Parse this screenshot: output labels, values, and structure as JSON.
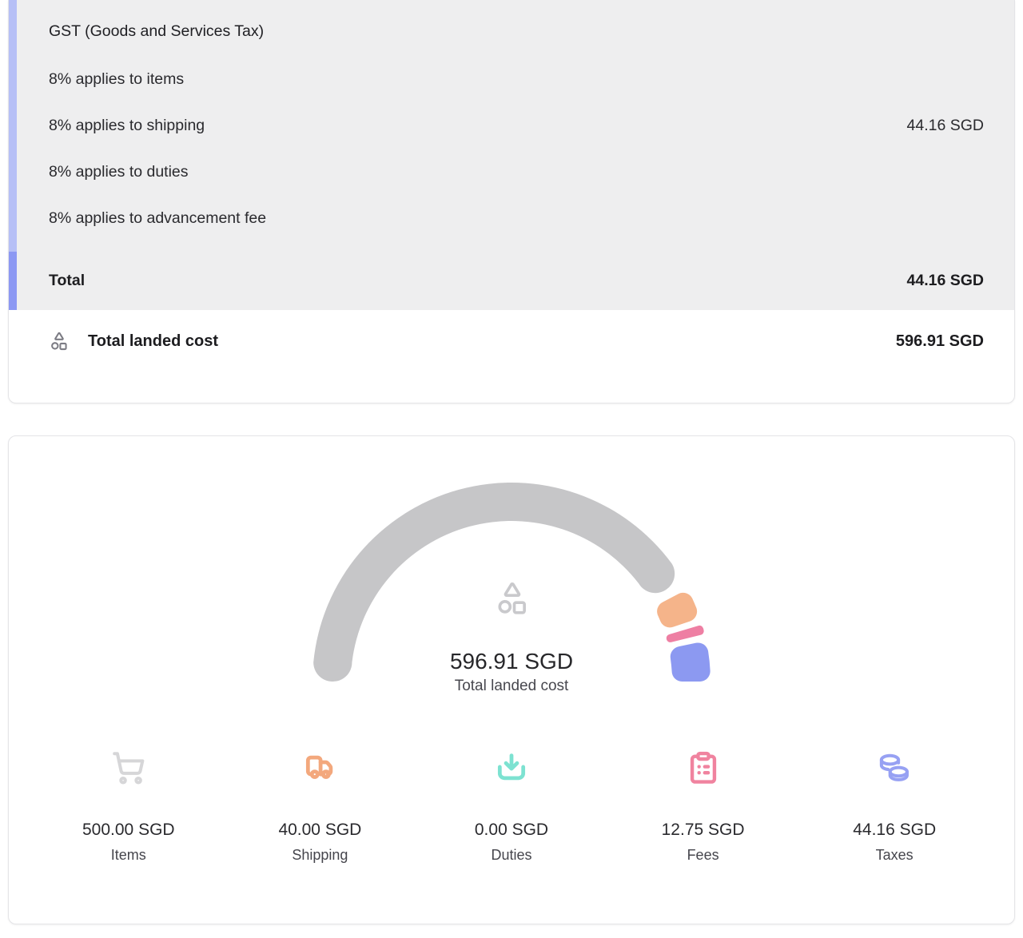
{
  "theme": {
    "panel_bg": "#eeeeef",
    "card_border": "#e4e4e7",
    "accent_bar_light": "#b6bff6",
    "accent_bar_dark": "#8c98f3",
    "text_primary": "#27272a",
    "text_secondary": "#45454c",
    "shapes_icon_row_color": "#7c7c84",
    "shapes_icon_center_color": "#c9c9cc"
  },
  "tax_section": {
    "title": "GST (Goods and Services Tax)",
    "lines": [
      {
        "label": "8% applies to items",
        "value": ""
      },
      {
        "label": "8% applies to shipping",
        "value": "44.16 SGD"
      },
      {
        "label": "8% applies to duties",
        "value": ""
      },
      {
        "label": "8% applies to advancement fee",
        "value": ""
      }
    ],
    "total": {
      "label": "Total",
      "value": "44.16 SGD"
    }
  },
  "landed_cost_row": {
    "label": "Total landed cost",
    "value": "596.91 SGD"
  },
  "chart_data": {
    "type": "gauge",
    "title": "Total landed cost",
    "center": {
      "value": "596.91 SGD",
      "label": "Total landed cost"
    },
    "currency": "SGD",
    "total": 596.91,
    "start_angle_deg": 180,
    "sweep_deg": 180,
    "legend_position": "bottom",
    "segments": [
      {
        "name": "Items",
        "value": 500.0,
        "display": "500.00 SGD",
        "color": "#c6c6c8",
        "icon": "shopping-cart-icon",
        "icon_color": "#d6d6d8"
      },
      {
        "name": "Shipping",
        "value": 40.0,
        "display": "40.00 SGD",
        "color": "#f5b48a",
        "icon": "truck-icon",
        "icon_color": "#f3a87d"
      },
      {
        "name": "Duties",
        "value": 0.0,
        "display": "0.00 SGD",
        "color": "#7de2d1",
        "icon": "download-icon",
        "icon_color": "#7de2d1"
      },
      {
        "name": "Fees",
        "value": 12.75,
        "display": "12.75 SGD",
        "color": "#ee7fa3",
        "icon": "clipboard-list-icon",
        "icon_color": "#f0839f"
      },
      {
        "name": "Taxes",
        "value": 44.16,
        "display": "44.16 SGD",
        "color": "#8c99f1",
        "icon": "coins-icon",
        "icon_color": "#97a1f3"
      }
    ]
  }
}
